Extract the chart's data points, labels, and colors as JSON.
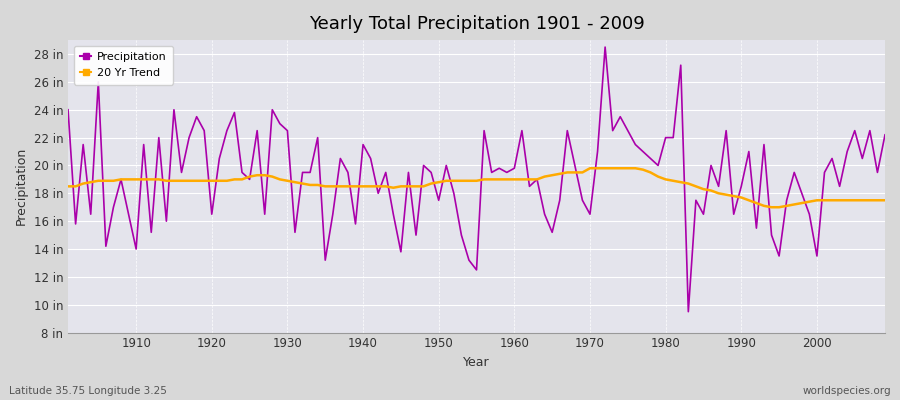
{
  "title": "Yearly Total Precipitation 1901 - 2009",
  "xlabel": "Year",
  "ylabel": "Precipitation",
  "lat_lon_label": "Latitude 35.75 Longitude 3.25",
  "watermark": "worldspecies.org",
  "precip_color": "#aa00aa",
  "trend_color": "#ffaa00",
  "background_color": "#dcdcdc",
  "plot_bg_color": "#e0e0e8",
  "ylim": [
    8,
    29
  ],
  "yticks": [
    8,
    10,
    12,
    14,
    16,
    18,
    20,
    22,
    24,
    26,
    28
  ],
  "xlim": [
    1901,
    2009
  ],
  "xticks": [
    1910,
    1920,
    1930,
    1940,
    1950,
    1960,
    1970,
    1980,
    1990,
    2000
  ],
  "years": [
    1901,
    1902,
    1903,
    1904,
    1905,
    1906,
    1907,
    1908,
    1909,
    1910,
    1911,
    1912,
    1913,
    1914,
    1915,
    1916,
    1917,
    1918,
    1919,
    1920,
    1921,
    1922,
    1923,
    1924,
    1925,
    1926,
    1927,
    1928,
    1929,
    1930,
    1931,
    1932,
    1933,
    1934,
    1935,
    1936,
    1937,
    1938,
    1939,
    1940,
    1941,
    1942,
    1943,
    1944,
    1945,
    1946,
    1947,
    1948,
    1949,
    1950,
    1951,
    1952,
    1953,
    1954,
    1955,
    1956,
    1957,
    1958,
    1959,
    1960,
    1961,
    1962,
    1963,
    1964,
    1965,
    1966,
    1967,
    1968,
    1969,
    1970,
    1971,
    1972,
    1973,
    1974,
    1975,
    1976,
    1977,
    1978,
    1979,
    1980,
    1981,
    1982,
    1983,
    1984,
    1985,
    1986,
    1987,
    1988,
    1989,
    1990,
    1991,
    1992,
    1993,
    1994,
    1995,
    1996,
    1997,
    1998,
    1999,
    2000,
    2001,
    2002,
    2003,
    2004,
    2005,
    2006,
    2007,
    2008,
    2009
  ],
  "precip": [
    24.0,
    15.8,
    21.5,
    16.5,
    26.0,
    14.2,
    17.0,
    19.0,
    16.5,
    14.0,
    21.5,
    15.2,
    22.0,
    16.0,
    24.0,
    19.5,
    22.0,
    23.5,
    22.5,
    16.5,
    20.5,
    22.5,
    23.8,
    19.5,
    19.0,
    22.5,
    16.5,
    24.0,
    23.0,
    22.5,
    15.2,
    19.5,
    19.5,
    22.0,
    13.2,
    16.5,
    20.5,
    19.5,
    15.8,
    21.5,
    20.5,
    18.0,
    19.5,
    16.5,
    13.8,
    19.5,
    15.0,
    20.0,
    19.5,
    17.5,
    20.0,
    18.0,
    15.0,
    13.2,
    12.5,
    22.5,
    19.5,
    19.8,
    19.5,
    19.8,
    22.5,
    18.5,
    19.0,
    16.5,
    15.2,
    17.5,
    22.5,
    20.0,
    17.5,
    16.5,
    21.0,
    28.5,
    22.5,
    23.5,
    22.5,
    21.5,
    21.0,
    20.5,
    20.0,
    22.0,
    22.0,
    27.2,
    9.5,
    17.5,
    16.5,
    20.0,
    18.5,
    22.5,
    16.5,
    18.5,
    21.0,
    15.5,
    21.5,
    15.0,
    13.5,
    17.5,
    19.5,
    18.0,
    16.5,
    13.5,
    19.5,
    20.5,
    18.5,
    21.0,
    22.5,
    20.5,
    22.5,
    19.5,
    22.2
  ],
  "trend": [
    18.5,
    18.5,
    18.7,
    18.8,
    18.9,
    18.9,
    18.9,
    19.0,
    19.0,
    19.0,
    19.0,
    19.0,
    19.0,
    18.9,
    18.9,
    18.9,
    18.9,
    18.9,
    18.9,
    18.9,
    18.9,
    18.9,
    19.0,
    19.0,
    19.2,
    19.3,
    19.3,
    19.2,
    19.0,
    18.9,
    18.8,
    18.7,
    18.6,
    18.6,
    18.5,
    18.5,
    18.5,
    18.5,
    18.5,
    18.5,
    18.5,
    18.5,
    18.5,
    18.4,
    18.5,
    18.5,
    18.5,
    18.5,
    18.7,
    18.8,
    18.9,
    18.9,
    18.9,
    18.9,
    18.9,
    19.0,
    19.0,
    19.0,
    19.0,
    19.0,
    19.0,
    19.0,
    19.0,
    19.2,
    19.3,
    19.4,
    19.5,
    19.5,
    19.5,
    19.8,
    19.8,
    19.8,
    19.8,
    19.8,
    19.8,
    19.8,
    19.7,
    19.5,
    19.2,
    19.0,
    18.9,
    18.8,
    18.7,
    18.5,
    18.3,
    18.2,
    18.0,
    17.9,
    17.8,
    17.7,
    17.5,
    17.3,
    17.1,
    17.0,
    17.0,
    17.1,
    17.2,
    17.3,
    17.4,
    17.5,
    17.5,
    17.5,
    17.5,
    17.5,
    17.5,
    17.5,
    17.5,
    17.5,
    17.5
  ]
}
